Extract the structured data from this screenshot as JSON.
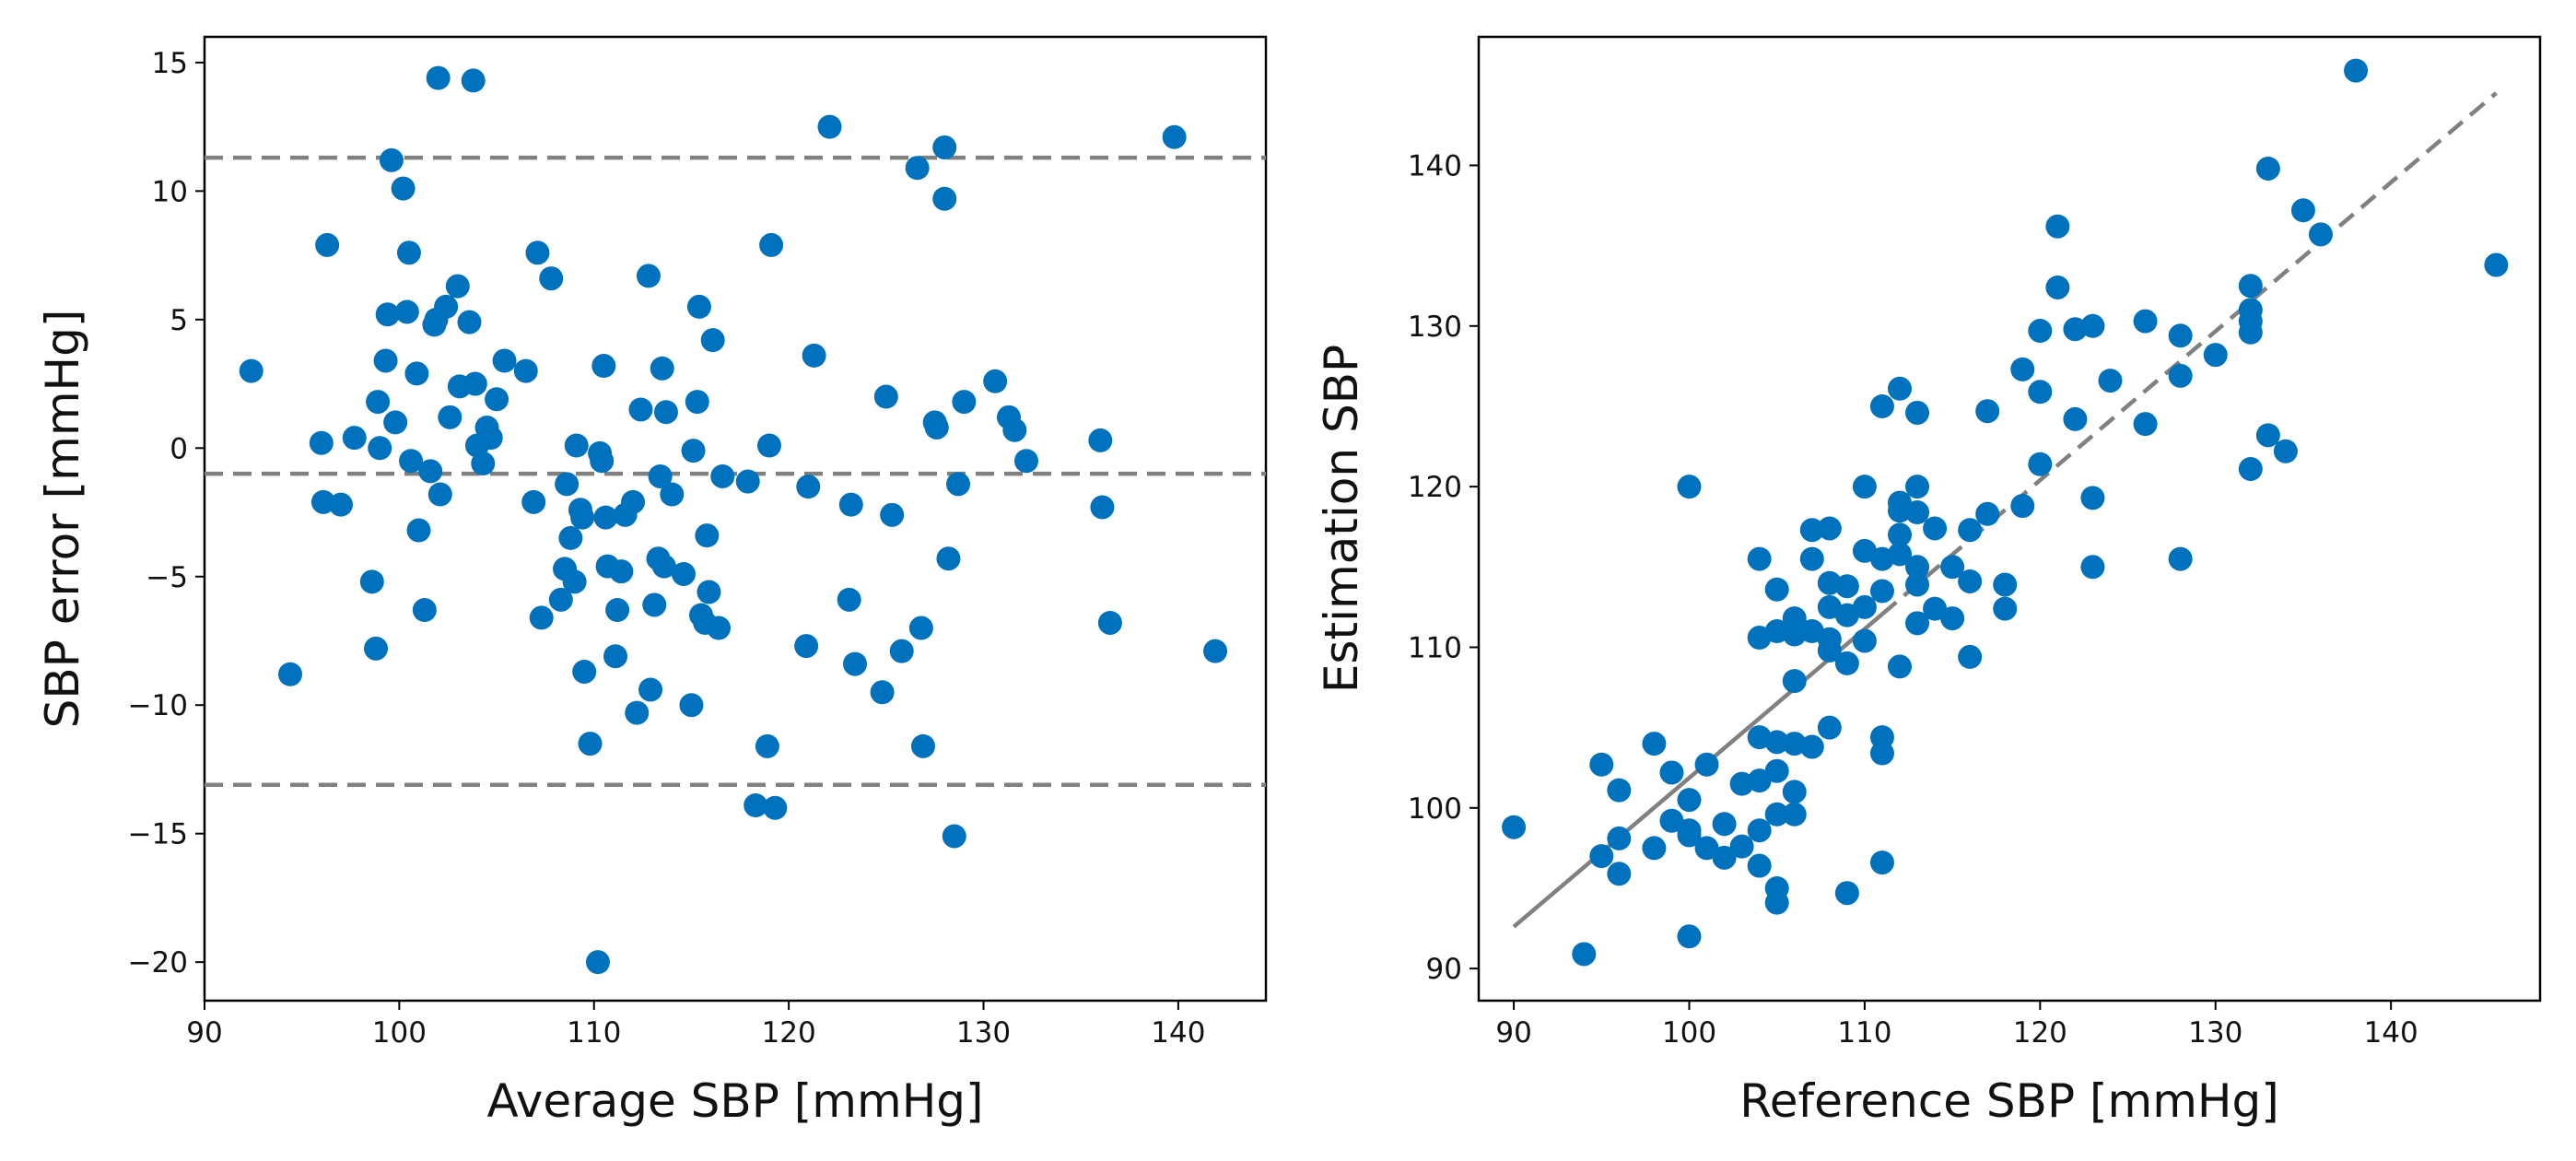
{
  "chart_data": [
    {
      "type": "scatter",
      "title": "",
      "xlabel": "Average SBP [mmHg]",
      "ylabel": "SBP error [mmHg]",
      "xlim": [
        90,
        144.5
      ],
      "ylim": [
        -21.5,
        16
      ],
      "x_ticks": [
        90,
        100,
        110,
        120,
        130,
        140
      ],
      "y_ticks": [
        -20,
        -15,
        -10,
        -5,
        0,
        5,
        10,
        15
      ],
      "x_tick_labels": [
        "90",
        "100",
        "110",
        "120",
        "130",
        "140"
      ],
      "y_tick_labels": [
        "−20",
        "−15",
        "−10",
        "−5",
        "0",
        "5",
        "10",
        "15"
      ],
      "grid": false,
      "marker_color": "#0072bd",
      "reference_lines": [
        {
          "name": "upper limit",
          "y": 11.3,
          "color": "#808080",
          "style": "dashed"
        },
        {
          "name": "mean bias",
          "y": -1.0,
          "color": "#808080",
          "style": "dashed"
        },
        {
          "name": "lower limit",
          "y": -13.1,
          "color": "#808080",
          "style": "dashed"
        }
      ],
      "points": [
        [
          92.4,
          3.0
        ],
        [
          94.4,
          -8.8
        ],
        [
          96.0,
          0.2
        ],
        [
          96.1,
          -2.1
        ],
        [
          96.3,
          7.9
        ],
        [
          97.0,
          -2.2
        ],
        [
          97.7,
          0.4
        ],
        [
          98.6,
          -5.2
        ],
        [
          98.8,
          -7.8
        ],
        [
          98.9,
          1.8
        ],
        [
          99.0,
          0.0
        ],
        [
          99.3,
          3.4
        ],
        [
          99.4,
          5.2
        ],
        [
          99.6,
          11.2
        ],
        [
          99.8,
          1.0
        ],
        [
          100.2,
          10.1
        ],
        [
          100.4,
          5.3
        ],
        [
          100.5,
          7.6
        ],
        [
          100.6,
          -0.5
        ],
        [
          100.9,
          2.9
        ],
        [
          101.0,
          -3.2
        ],
        [
          101.3,
          -6.3
        ],
        [
          101.6,
          -0.9
        ],
        [
          101.8,
          4.8
        ],
        [
          101.9,
          5.0
        ],
        [
          102.0,
          14.4
        ],
        [
          102.1,
          -1.8
        ],
        [
          102.4,
          5.5
        ],
        [
          102.6,
          1.2
        ],
        [
          103.0,
          6.3
        ],
        [
          103.1,
          2.4
        ],
        [
          103.6,
          4.9
        ],
        [
          103.8,
          14.3
        ],
        [
          103.9,
          2.5
        ],
        [
          104.0,
          0.1
        ],
        [
          104.3,
          -0.6
        ],
        [
          104.5,
          0.8
        ],
        [
          104.7,
          0.4
        ],
        [
          105.0,
          1.9
        ],
        [
          105.4,
          3.4
        ],
        [
          106.5,
          3.0
        ],
        [
          106.9,
          -2.1
        ],
        [
          107.1,
          7.6
        ],
        [
          107.3,
          -6.6
        ],
        [
          107.8,
          6.6
        ],
        [
          108.3,
          -5.9
        ],
        [
          108.5,
          -4.7
        ],
        [
          108.6,
          -1.4
        ],
        [
          108.8,
          -3.5
        ],
        [
          109.0,
          -5.2
        ],
        [
          109.1,
          0.1
        ],
        [
          109.3,
          -2.4
        ],
        [
          109.4,
          -2.7
        ],
        [
          109.5,
          -8.7
        ],
        [
          109.8,
          -11.5
        ],
        [
          110.2,
          -20.0
        ],
        [
          110.3,
          -0.2
        ],
        [
          110.4,
          -0.5
        ],
        [
          110.5,
          3.2
        ],
        [
          110.6,
          -2.7
        ],
        [
          110.7,
          -4.6
        ],
        [
          111.1,
          -8.1
        ],
        [
          111.2,
          -6.3
        ],
        [
          111.4,
          -4.8
        ],
        [
          111.6,
          -2.6
        ],
        [
          112.0,
          -2.1
        ],
        [
          112.2,
          -10.3
        ],
        [
          112.4,
          1.5
        ],
        [
          112.8,
          6.7
        ],
        [
          112.9,
          -9.4
        ],
        [
          113.1,
          -6.1
        ],
        [
          113.3,
          -4.3
        ],
        [
          113.4,
          -1.1
        ],
        [
          113.5,
          3.1
        ],
        [
          113.6,
          -4.6
        ],
        [
          113.7,
          1.4
        ],
        [
          114.0,
          -1.8
        ],
        [
          114.6,
          -4.9
        ],
        [
          115.0,
          -10.0
        ],
        [
          115.1,
          -0.1
        ],
        [
          115.3,
          1.8
        ],
        [
          115.4,
          5.5
        ],
        [
          115.5,
          -6.5
        ],
        [
          115.7,
          -6.8
        ],
        [
          115.8,
          -3.4
        ],
        [
          115.9,
          -5.6
        ],
        [
          116.1,
          4.2
        ],
        [
          116.4,
          -7.0
        ],
        [
          116.6,
          -1.1
        ],
        [
          117.9,
          -1.3
        ],
        [
          118.3,
          -13.9
        ],
        [
          118.9,
          -11.6
        ],
        [
          119.0,
          0.1
        ],
        [
          119.1,
          7.9
        ],
        [
          119.3,
          -14.0
        ],
        [
          120.9,
          -7.7
        ],
        [
          121.0,
          -1.5
        ],
        [
          121.3,
          3.6
        ],
        [
          122.1,
          12.5
        ],
        [
          123.1,
          -5.9
        ],
        [
          123.2,
          -2.2
        ],
        [
          123.4,
          -8.4
        ],
        [
          124.8,
          -9.5
        ],
        [
          125.0,
          2.0
        ],
        [
          125.3,
          -2.6
        ],
        [
          125.8,
          -7.9
        ],
        [
          126.6,
          10.9
        ],
        [
          126.8,
          -7.0
        ],
        [
          126.9,
          -11.6
        ],
        [
          127.5,
          1.0
        ],
        [
          127.6,
          0.8
        ],
        [
          128.0,
          11.7
        ],
        [
          128.0,
          9.7
        ],
        [
          128.2,
          -4.3
        ],
        [
          128.5,
          -15.1
        ],
        [
          128.7,
          -1.4
        ],
        [
          129.0,
          1.8
        ],
        [
          130.6,
          2.6
        ],
        [
          131.3,
          1.2
        ],
        [
          131.6,
          0.7
        ],
        [
          132.2,
          -0.5
        ],
        [
          136.0,
          0.3
        ],
        [
          136.1,
          -2.3
        ],
        [
          136.5,
          -6.8
        ],
        [
          139.8,
          12.1
        ],
        [
          141.9,
          -7.9
        ]
      ]
    },
    {
      "type": "scatter",
      "title": "",
      "xlabel": "Reference SBP [mmHg]",
      "ylabel": "Estimation SBP",
      "xlim": [
        88,
        148.5
      ],
      "ylim": [
        88,
        148
      ],
      "x_ticks": [
        90,
        100,
        110,
        120,
        130,
        140
      ],
      "y_ticks": [
        90,
        100,
        110,
        120,
        130,
        140
      ],
      "x_tick_labels": [
        "90",
        "100",
        "110",
        "120",
        "130",
        "140"
      ],
      "y_tick_labels": [
        "90",
        "100",
        "110",
        "120",
        "130",
        "140"
      ],
      "grid": false,
      "marker_color": "#0072bd",
      "fit_line": {
        "x": [
          90,
          146
        ],
        "y": [
          92.6,
          144.5
        ],
        "dash_from_x": 111,
        "color": "#808080"
      },
      "points": [
        [
          90,
          98.8
        ],
        [
          94,
          90.9
        ],
        [
          95,
          102.7
        ],
        [
          95,
          97.0
        ],
        [
          96,
          101.1
        ],
        [
          96,
          98.1
        ],
        [
          96,
          95.9
        ],
        [
          98,
          104.0
        ],
        [
          98,
          97.5
        ],
        [
          99,
          102.2
        ],
        [
          99,
          99.2
        ],
        [
          100,
          120.0
        ],
        [
          100,
          100.5
        ],
        [
          100,
          98.6
        ],
        [
          100,
          98.3
        ],
        [
          100,
          92.0
        ],
        [
          101,
          102.7
        ],
        [
          101,
          97.5
        ],
        [
          102,
          99.0
        ],
        [
          102,
          96.9
        ],
        [
          103,
          101.5
        ],
        [
          103,
          97.6
        ],
        [
          104,
          115.5
        ],
        [
          104,
          110.6
        ],
        [
          104,
          104.4
        ],
        [
          104,
          101.7
        ],
        [
          104,
          96.4
        ],
        [
          104,
          98.6
        ],
        [
          105,
          113.6
        ],
        [
          105,
          111.0
        ],
        [
          105,
          104.1
        ],
        [
          105,
          102.3
        ],
        [
          105,
          99.6
        ],
        [
          105,
          95.0
        ],
        [
          105,
          94.1
        ],
        [
          106,
          111.8
        ],
        [
          106,
          111.3
        ],
        [
          106,
          110.8
        ],
        [
          106,
          107.9
        ],
        [
          106,
          104.0
        ],
        [
          106,
          101.0
        ],
        [
          106,
          99.6
        ],
        [
          107,
          117.3
        ],
        [
          107,
          115.5
        ],
        [
          107,
          111.0
        ],
        [
          107,
          103.8
        ],
        [
          108,
          117.4
        ],
        [
          108,
          114.0
        ],
        [
          108,
          112.5
        ],
        [
          108,
          110.5
        ],
        [
          108,
          109.8
        ],
        [
          108,
          105.0
        ],
        [
          109,
          113.8
        ],
        [
          109,
          112.0
        ],
        [
          109,
          109.0
        ],
        [
          109,
          94.7
        ],
        [
          110,
          120.0
        ],
        [
          110,
          116.0
        ],
        [
          110,
          112.5
        ],
        [
          110,
          110.4
        ],
        [
          111,
          125.0
        ],
        [
          111,
          115.5
        ],
        [
          111,
          113.5
        ],
        [
          111,
          104.4
        ],
        [
          111,
          103.4
        ],
        [
          111,
          96.6
        ],
        [
          112,
          126.1
        ],
        [
          112,
          119.0
        ],
        [
          112,
          118.5
        ],
        [
          112,
          117.0
        ],
        [
          112,
          115.8
        ],
        [
          112,
          108.8
        ],
        [
          113,
          124.6
        ],
        [
          113,
          120.0
        ],
        [
          113,
          118.4
        ],
        [
          113,
          115.0
        ],
        [
          113,
          113.9
        ],
        [
          113,
          111.5
        ],
        [
          114,
          117.4
        ],
        [
          114,
          112.4
        ],
        [
          115,
          115.0
        ],
        [
          115,
          111.8
        ],
        [
          116,
          117.3
        ],
        [
          116,
          114.1
        ],
        [
          116,
          109.4
        ],
        [
          117,
          124.7
        ],
        [
          117,
          118.3
        ],
        [
          118,
          113.9
        ],
        [
          118,
          112.4
        ],
        [
          119,
          127.3
        ],
        [
          119,
          118.8
        ],
        [
          120,
          129.7
        ],
        [
          120,
          125.9
        ],
        [
          120,
          121.4
        ],
        [
          121,
          136.2
        ],
        [
          121,
          132.4
        ],
        [
          122,
          129.8
        ],
        [
          122,
          124.2
        ],
        [
          123,
          130.0
        ],
        [
          123,
          119.3
        ],
        [
          123,
          115.0
        ],
        [
          124,
          126.6
        ],
        [
          126,
          130.3
        ],
        [
          126,
          123.9
        ],
        [
          128,
          129.4
        ],
        [
          128,
          126.9
        ],
        [
          128,
          115.5
        ],
        [
          130,
          128.2
        ],
        [
          132,
          132.5
        ],
        [
          132,
          131.0
        ],
        [
          132,
          130.3
        ],
        [
          132,
          129.6
        ],
        [
          132,
          121.1
        ],
        [
          133,
          139.8
        ],
        [
          133,
          123.2
        ],
        [
          134,
          122.2
        ],
        [
          135,
          137.2
        ],
        [
          136,
          135.7
        ],
        [
          138,
          145.9
        ],
        [
          146,
          133.8
        ]
      ]
    }
  ]
}
